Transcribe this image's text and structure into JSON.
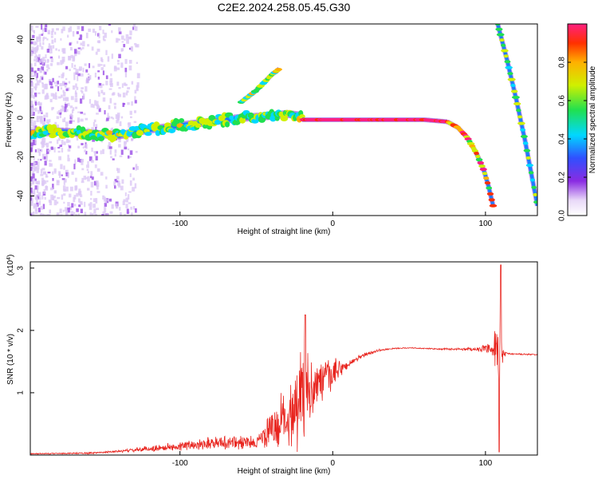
{
  "title": "C2E2.2024.258.05.45.G30",
  "chart_data": [
    {
      "type": "heatmap",
      "xlabel": "Height of straight line (km)",
      "ylabel": "Frequency (Hz)",
      "xlim": [
        -198,
        134
      ],
      "ylim": [
        -50,
        48
      ],
      "xticks": [
        -100,
        0,
        100
      ],
      "yticks": [
        -40,
        -20,
        0,
        20,
        40
      ],
      "colorbar": {
        "label": "Normalized spectral amplitude",
        "range": [
          0,
          1
        ],
        "ticks": [
          "0.0",
          "0.2",
          "0.4",
          "0.6",
          "0.8"
        ],
        "tick_values": [
          0.0,
          0.2,
          0.4,
          0.6,
          0.8
        ]
      },
      "traces": [
        {
          "x": [
            -198,
            -180,
            -160,
            -140,
            -120,
            -100,
            -80,
            -60,
            -40,
            -30,
            -20
          ],
          "y": [
            -8,
            -7,
            -8,
            -9,
            -6,
            -4,
            -2,
            0,
            1,
            2,
            1
          ]
        },
        {
          "x": [
            -60,
            -50,
            -45,
            -40,
            -35
          ],
          "y": [
            8,
            14,
            18,
            22,
            25
          ]
        },
        {
          "x": [
            -20,
            -10,
            0,
            20,
            40,
            60,
            75
          ],
          "y": [
            -1,
            -1,
            -1,
            -1,
            -1,
            -1,
            -2
          ]
        },
        {
          "x": [
            75,
            82,
            88,
            94,
            99,
            102,
            105
          ],
          "y": [
            -2,
            -5,
            -10,
            -18,
            -27,
            -35,
            -45
          ]
        },
        {
          "x": [
            108,
            114,
            120,
            126,
            134
          ],
          "y": [
            48,
            30,
            10,
            -12,
            -45
          ]
        }
      ]
    },
    {
      "type": "line",
      "xlabel": "Height of straight line (km)",
      "ylabel": "SNR (10 * v/v)",
      "y_multiplier": "(x10^4)",
      "xlim": [
        -198,
        134
      ],
      "ylim": [
        0,
        3.1
      ],
      "xticks": [
        -100,
        0,
        100
      ],
      "yticks": [
        1,
        2,
        3
      ],
      "series_color": "#e8241e",
      "envelope": {
        "x": [
          -198,
          -160,
          -140,
          -120,
          -100,
          -80,
          -60,
          -50,
          -40,
          -30,
          -25,
          -20,
          -15,
          -10,
          -5,
          0,
          10,
          20,
          30,
          40,
          50,
          60,
          70,
          80,
          90,
          100,
          105,
          108,
          110,
          112,
          120,
          134
        ],
        "y": [
          0.02,
          0.03,
          0.06,
          0.1,
          0.14,
          0.2,
          0.2,
          0.2,
          0.4,
          0.6,
          0.8,
          1.0,
          1.1,
          1.15,
          1.2,
          1.3,
          1.45,
          1.6,
          1.68,
          1.71,
          1.72,
          1.71,
          1.7,
          1.7,
          1.7,
          1.7,
          1.68,
          1.5,
          1.6,
          1.63,
          1.62,
          1.61
        ]
      },
      "noise_amp": {
        "x": [
          -198,
          -140,
          -120,
          -100,
          -80,
          -60,
          -50,
          -40,
          -30,
          -25,
          -20,
          -15,
          -10,
          -5,
          0,
          5,
          10,
          20,
          30,
          40,
          60,
          80,
          95,
          100,
          105,
          108,
          110,
          112,
          114,
          134
        ],
        "y": [
          0.01,
          0.02,
          0.06,
          0.08,
          0.12,
          0.15,
          0.1,
          0.4,
          0.6,
          0.8,
          1.0,
          0.6,
          0.45,
          0.4,
          0.3,
          0.15,
          0.08,
          0.04,
          0.02,
          0.01,
          0.01,
          0.02,
          0.04,
          0.08,
          0.12,
          0.9,
          1.0,
          0.1,
          0.02,
          0.01
        ]
      },
      "annotations": [
        {
          "x": -18,
          "y": 2.25,
          "label": ""
        },
        {
          "x": 110,
          "y": 3.05,
          "label": ""
        },
        {
          "x": 109,
          "y": 0.05,
          "label": ""
        }
      ]
    }
  ]
}
